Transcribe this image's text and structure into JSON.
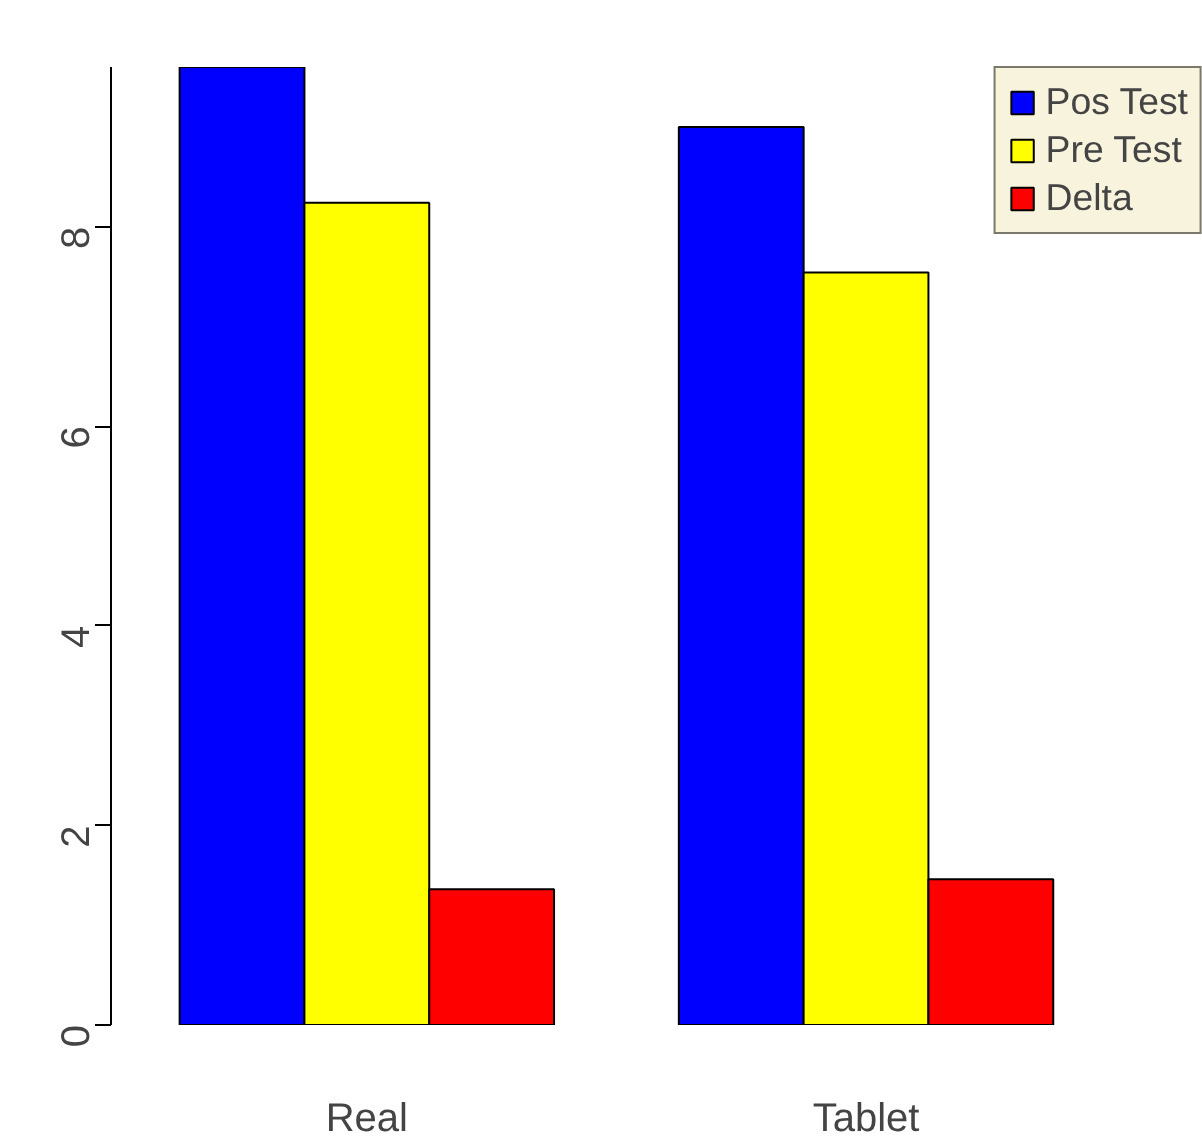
{
  "chart_data": {
    "type": "bar",
    "categories": [
      "Real",
      "Tablet"
    ],
    "series": [
      {
        "name": "Pos Test",
        "color": "#0000ff",
        "values": [
          9.6,
          9.0
        ]
      },
      {
        "name": "Pre Test",
        "color": "#ffff00",
        "values": [
          8.24,
          7.54
        ]
      },
      {
        "name": "Delta",
        "color": "#ff0000",
        "values": [
          1.36,
          1.46
        ]
      }
    ],
    "ylim": [
      0,
      9.6
    ],
    "yticks": [
      0,
      2,
      4,
      6,
      8
    ],
    "grid": false,
    "legend": "top right"
  }
}
